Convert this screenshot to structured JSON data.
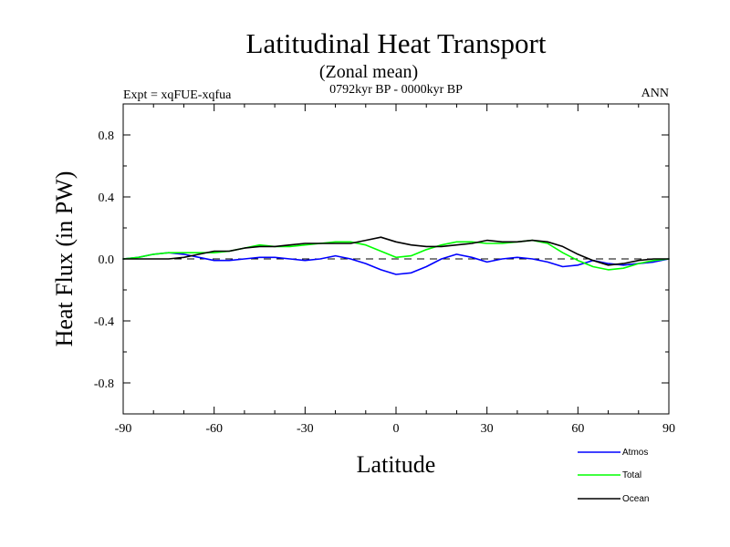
{
  "chart_data": {
    "type": "line",
    "title": "Latitudinal Heat Transport",
    "subtitle": "(Zonal mean)",
    "period": "0792kyr BP - 0000kyr BP",
    "expt": "Expt = xqFUE-xqfua",
    "season": "ANN",
    "xlabel": "Latitude",
    "ylabel": "Heat Flux (in PW)",
    "xlim": [
      -90,
      90
    ],
    "ylim": [
      -1.0,
      1.0
    ],
    "xticks": [
      -90,
      -60,
      -30,
      0,
      30,
      60,
      90
    ],
    "xtick_labels": [
      "-90",
      "-60",
      "-30",
      "0",
      "30",
      "60",
      "90"
    ],
    "yticks": [
      -0.8,
      -0.4,
      0.0,
      0.4,
      0.8
    ],
    "ytick_labels": [
      "-0.8",
      "-0.4",
      "0.0",
      "0.4",
      "0.8"
    ],
    "zero_line": true,
    "series": [
      {
        "name": "Atmos",
        "color": "#0000ff",
        "x": [
          -90,
          -85,
          -80,
          -75,
          -70,
          -65,
          -60,
          -55,
          -50,
          -45,
          -40,
          -35,
          -30,
          -25,
          -20,
          -15,
          -10,
          -5,
          0,
          5,
          10,
          15,
          20,
          25,
          30,
          35,
          40,
          45,
          50,
          55,
          60,
          65,
          70,
          75,
          80,
          85,
          90
        ],
        "values": [
          0.0,
          0.01,
          0.03,
          0.04,
          0.03,
          0.01,
          -0.01,
          -0.01,
          0.0,
          0.01,
          0.01,
          0.0,
          -0.01,
          0.0,
          0.02,
          0.0,
          -0.03,
          -0.07,
          -0.1,
          -0.09,
          -0.05,
          0.0,
          0.03,
          0.01,
          -0.02,
          0.0,
          0.01,
          0.0,
          -0.02,
          -0.05,
          -0.04,
          -0.01,
          -0.03,
          -0.04,
          -0.03,
          -0.02,
          0.0
        ]
      },
      {
        "name": "Total",
        "color": "#00ff00",
        "x": [
          -90,
          -85,
          -80,
          -75,
          -70,
          -65,
          -60,
          -55,
          -50,
          -45,
          -40,
          -35,
          -30,
          -25,
          -20,
          -15,
          -10,
          -5,
          0,
          5,
          10,
          15,
          20,
          25,
          30,
          35,
          40,
          45,
          50,
          55,
          60,
          65,
          70,
          75,
          80,
          85,
          90
        ],
        "values": [
          0.0,
          0.01,
          0.03,
          0.04,
          0.04,
          0.04,
          0.04,
          0.05,
          0.07,
          0.09,
          0.08,
          0.08,
          0.09,
          0.1,
          0.11,
          0.11,
          0.09,
          0.05,
          0.01,
          0.02,
          0.06,
          0.09,
          0.11,
          0.11,
          0.1,
          0.1,
          0.11,
          0.12,
          0.1,
          0.04,
          -0.01,
          -0.05,
          -0.07,
          -0.06,
          -0.03,
          -0.01,
          0.0
        ]
      },
      {
        "name": "Ocean",
        "color": "#000000",
        "x": [
          -90,
          -85,
          -80,
          -75,
          -70,
          -65,
          -60,
          -55,
          -50,
          -45,
          -40,
          -35,
          -30,
          -25,
          -20,
          -15,
          -10,
          -5,
          0,
          5,
          10,
          15,
          20,
          25,
          30,
          35,
          40,
          45,
          50,
          55,
          60,
          65,
          70,
          75,
          80,
          85,
          90
        ],
        "values": [
          0.0,
          0.0,
          0.0,
          0.0,
          0.01,
          0.03,
          0.05,
          0.05,
          0.07,
          0.08,
          0.08,
          0.09,
          0.1,
          0.1,
          0.1,
          0.1,
          0.12,
          0.14,
          0.11,
          0.09,
          0.08,
          0.08,
          0.09,
          0.1,
          0.12,
          0.11,
          0.11,
          0.12,
          0.11,
          0.08,
          0.03,
          -0.01,
          -0.04,
          -0.03,
          -0.01,
          0.0,
          0.0
        ]
      }
    ],
    "legend": {
      "position": "bottom-right",
      "entries": [
        "Atmos",
        "Total",
        "Ocean"
      ]
    }
  }
}
